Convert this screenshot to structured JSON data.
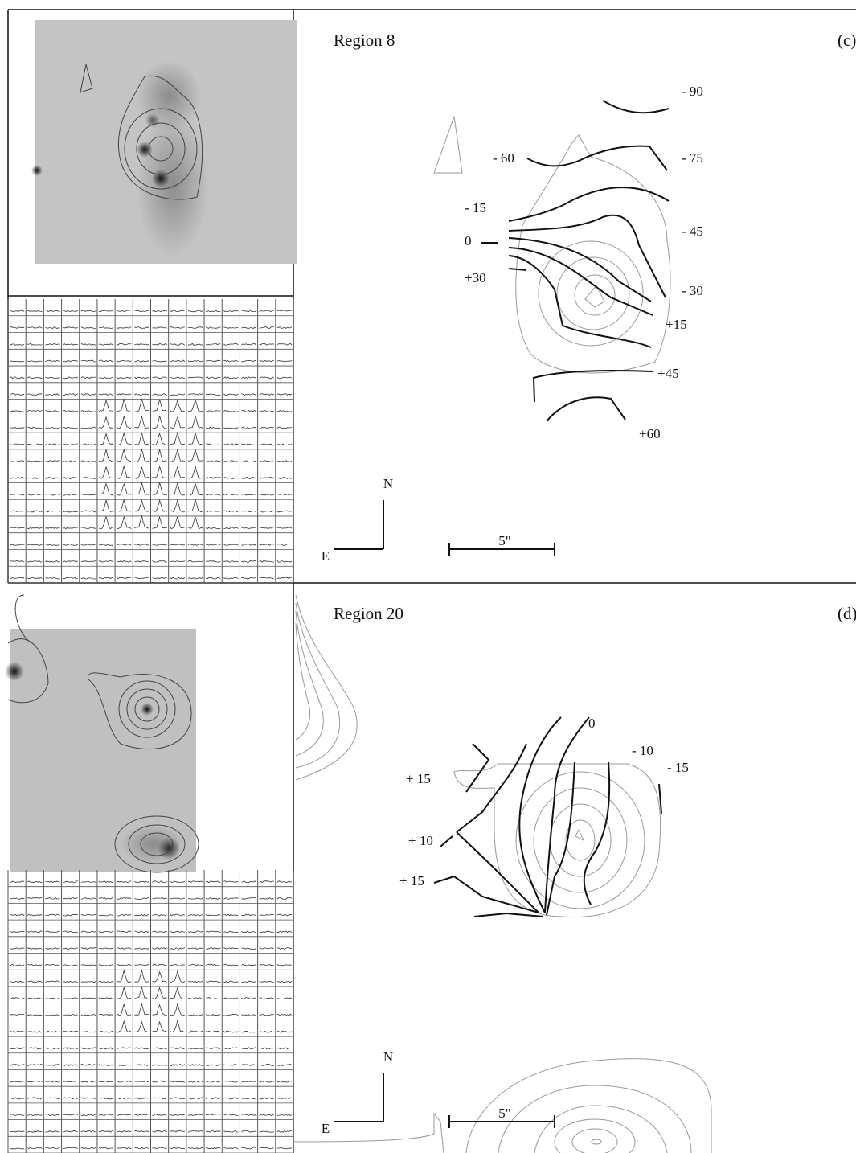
{
  "panels": [
    {
      "title": "Region 8",
      "tag": "(c)",
      "labels": [
        "- 90",
        "- 60",
        "- 75",
        "- 15",
        "0",
        "- 45",
        "+30",
        "- 30",
        "+15",
        "+45",
        "+60"
      ],
      "north": "N",
      "east": "E",
      "scale": "5\""
    },
    {
      "title": "Region 20",
      "tag": "(d)",
      "labels": [
        "0",
        "- 10",
        "- 15",
        "+ 15",
        "+ 10",
        "+ 15"
      ],
      "north": "N",
      "east": "E",
      "scale": "5\""
    }
  ]
}
